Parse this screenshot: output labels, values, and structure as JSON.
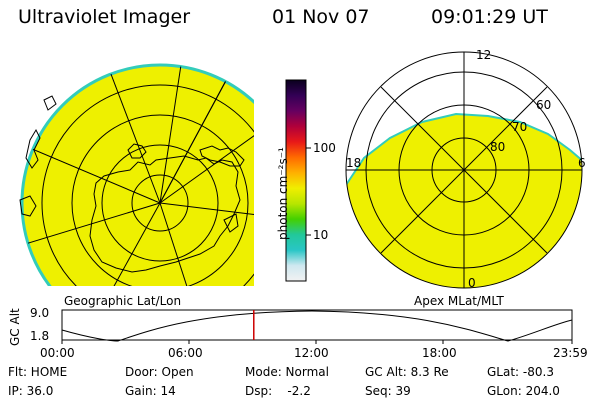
{
  "header": {
    "title": "Ultraviolet Imager",
    "date": "01 Nov 07",
    "time": "09:01:29 UT"
  },
  "colors": {
    "fill_yellow": "#eef000",
    "edge_cyan": "#33ccbb",
    "marker_red": "#cc0000",
    "grid": "#000000"
  },
  "colorbar": {
    "units": "photon cm⁻²s⁻¹",
    "ticks": [
      {
        "label": "100",
        "value": 100
      },
      {
        "label": "10",
        "value": 10
      }
    ],
    "stops": [
      "#f2f2f2",
      "#cfe8f0",
      "#29c6c6",
      "#22c89a",
      "#44d000",
      "#b8e600",
      "#f0ee00",
      "#ffb000",
      "#ff6a00",
      "#e81818",
      "#b0003a",
      "#660060",
      "#330055",
      "#0a001e"
    ]
  },
  "geographic_panel": {
    "label": "Geographic Lat/Lon"
  },
  "apex_panel": {
    "label": "Apex MLat/MLT",
    "mlt_labels": [
      {
        "label": "12",
        "hour": 12
      },
      {
        "label": "18",
        "hour": 18
      },
      {
        "label": "6",
        "hour": 6
      },
      {
        "label": "0",
        "hour": 0
      }
    ],
    "lat_labels": [
      {
        "label": "60",
        "lat": 60
      },
      {
        "label": "70",
        "lat": 70
      },
      {
        "label": "80",
        "lat": 80
      }
    ]
  },
  "altitude_plot": {
    "ylabel": "GC Alt",
    "ymax_label": "9.0",
    "ymin_label": "1.8",
    "ylim": [
      1.8,
      9.0
    ],
    "x_ticks": [
      "00:00",
      "06:00",
      "12:00",
      "18:00",
      "23:59"
    ],
    "current_time_hours": 9.025
  },
  "status": {
    "rows": [
      [
        "Flt: HOME",
        "Door: Open",
        "Mode: Normal",
        "GC Alt: 8.3 Re",
        "GLat: -80.3"
      ],
      [
        "IP: 36.0",
        "Gain: 14",
        "Dsp:    -2.2",
        "Seq: 39",
        "GLon: 204.0"
      ]
    ]
  }
}
